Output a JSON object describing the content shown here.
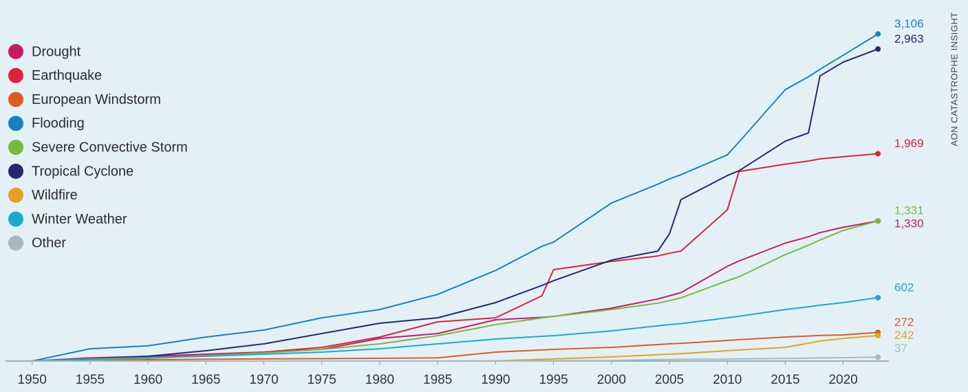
{
  "chart_data": {
    "type": "line",
    "source": "AON CATASTROPHE INSIGHT",
    "x": [
      1950,
      1955,
      1960,
      1965,
      1970,
      1975,
      1980,
      1985,
      1990,
      1994,
      1995,
      2000,
      2004,
      2005,
      2006,
      2010,
      2011,
      2015,
      2017,
      2018,
      2020,
      2023
    ],
    "xlim": [
      1948,
      2024
    ],
    "xticks": [
      1950,
      1955,
      1960,
      1965,
      1970,
      1975,
      1980,
      1985,
      1990,
      1995,
      2000,
      2005,
      2010,
      2015,
      2020
    ],
    "ylim": [
      0,
      3200
    ],
    "legend": "top-left",
    "series": [
      {
        "name": "Drought",
        "color": "#c81c62",
        "end_label": "1,330",
        "values": [
          0,
          30,
          46,
          65,
          85,
          111,
          215,
          261,
          392,
          415,
          424,
          502,
          590,
          620,
          650,
          900,
          950,
          1120,
          1180,
          1220,
          1270,
          1330
        ]
      },
      {
        "name": "Earthquake",
        "color": "#e0213a",
        "end_label": "1,969",
        "values": [
          0,
          20,
          33,
          52,
          85,
          130,
          228,
          372,
          411,
          620,
          868,
          946,
          998,
          1024,
          1044,
          1436,
          1800,
          1870,
          1900,
          1920,
          1940,
          1969
        ]
      },
      {
        "name": "European Windstorm",
        "color": "#e05a1e",
        "end_label": "272",
        "values": [
          0,
          8,
          13,
          17,
          20,
          23,
          26,
          30,
          85,
          105,
          111,
          130,
          157,
          163,
          168,
          196,
          203,
          228,
          238,
          243,
          248,
          272
        ]
      },
      {
        "name": "Flooding",
        "color": "#1a80c4",
        "end_label": "3,106",
        "values": [
          0,
          117,
          144,
          228,
          294,
          411,
          489,
          633,
          861,
          1090,
          1129,
          1501,
          1680,
          1729,
          1770,
          1958,
          2080,
          2577,
          2700,
          2770,
          2904,
          3106
        ]
      },
      {
        "name": "Severe Convective Storm",
        "color": "#79b83e",
        "end_label": "1,331",
        "values": [
          0,
          15,
          26,
          52,
          78,
          111,
          163,
          241,
          346,
          410,
          424,
          489,
          550,
          574,
          600,
          763,
          800,
          1011,
          1100,
          1150,
          1240,
          1331
        ]
      },
      {
        "name": "Tropical Cyclone",
        "color": "#26286e",
        "end_label": "2,963",
        "values": [
          0,
          20,
          46,
          98,
          163,
          261,
          359,
          411,
          555,
          718,
          763,
          959,
          1044,
          1207,
          1533,
          1762,
          1807,
          2088,
          2166,
          2708,
          2839,
          2963
        ]
      },
      {
        "name": "Wildfire",
        "color": "#e8a020",
        "end_label": "242",
        "values": [
          0,
          0,
          0,
          0,
          0,
          0,
          0,
          0,
          2,
          16,
          20,
          39,
          60,
          65,
          70,
          98,
          105,
          130,
          170,
          190,
          215,
          242
        ]
      },
      {
        "name": "Winter Weather",
        "color": "#1ba9c9",
        "end_label": "602",
        "values": [
          0,
          20,
          33,
          46,
          65,
          85,
          117,
          163,
          209,
          235,
          241,
          287,
          335,
          346,
          355,
          411,
          425,
          489,
          515,
          530,
          555,
          602
        ]
      },
      {
        "name": "Other",
        "color": "#a4b9c3",
        "end_label": "37",
        "values": [
          0,
          0,
          0,
          0,
          0,
          0,
          0,
          0,
          1,
          3,
          4,
          5,
          14,
          15,
          16,
          18,
          20,
          25,
          28,
          30,
          32,
          37
        ]
      }
    ]
  }
}
